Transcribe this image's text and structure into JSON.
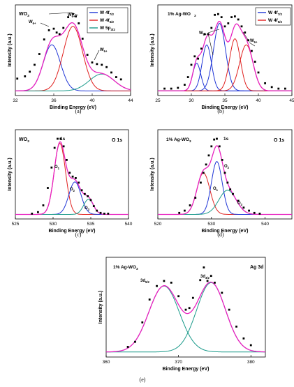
{
  "chart_data": [
    {
      "panel": "(a)",
      "type": "line",
      "sample": "WO3",
      "xlabel": "Binding Energy (eV)",
      "ylabel": "Intensity (a.u.)",
      "xlim": [
        32,
        44
      ],
      "xticks": [
        32,
        36,
        40,
        44
      ],
      "legend": [
        "W 4f7/2",
        "W 4f5/2",
        "W 5p3/2"
      ],
      "legend_colors": [
        "#1f35d6",
        "#e0201e",
        "#1a9a8a"
      ],
      "peak_labels": [
        "W6+",
        "W6+"
      ],
      "experimental": {
        "x": [
          32.2,
          33,
          33.5,
          34,
          34.5,
          35,
          35.5,
          36,
          36.3,
          36.6,
          37,
          37.5,
          38,
          38.3,
          38.6,
          39,
          39.5,
          40,
          40.5,
          41,
          41.5,
          42,
          42.5,
          43
        ],
        "y": [
          0.16,
          0.19,
          0.25,
          0.34,
          0.48,
          0.67,
          0.79,
          0.81,
          0.76,
          0.74,
          0.82,
          0.96,
          1.0,
          0.97,
          0.88,
          0.68,
          0.47,
          0.37,
          0.35,
          0.34,
          0.31,
          0.24,
          0.18,
          0.15
        ]
      },
      "series": [
        {
          "name": "W 4f7/2",
          "center": 35.8,
          "height": 0.6,
          "sigma": 0.9
        },
        {
          "name": "W 4f5/2",
          "center": 38.0,
          "height": 0.84,
          "sigma": 1.0
        },
        {
          "name": "W 5p3/2",
          "center": 41.0,
          "height": 0.22,
          "sigma": 1.3
        }
      ]
    },
    {
      "panel": "(b)",
      "type": "line",
      "sample": "1% Ag-WO3",
      "xlabel": "Binding Energy (eV)",
      "ylabel": "Intensity (a.u.)",
      "xlim": [
        25,
        45
      ],
      "xticks": [
        25,
        30,
        35,
        40,
        45
      ],
      "legend": [
        "W 4f7/2",
        "W 4f5/2"
      ],
      "legend_colors": [
        "#1f35d6",
        "#e0201e"
      ],
      "peak_labels": [
        "W5+",
        "W6+"
      ],
      "experimental": {
        "x": [
          26,
          27,
          28,
          29,
          29.5,
          30,
          30.5,
          31,
          31.5,
          32,
          32.5,
          33,
          33.5,
          34,
          34.5,
          35,
          35.5,
          36,
          36.5,
          37,
          37.5,
          38,
          38.5,
          39,
          39.5,
          40,
          41,
          42,
          43,
          44
        ],
        "y": [
          0.03,
          0.03,
          0.04,
          0.08,
          0.18,
          0.34,
          0.45,
          0.42,
          0.55,
          0.74,
          0.74,
          0.82,
          0.99,
          1.0,
          0.96,
          0.84,
          0.88,
          0.96,
          0.97,
          0.93,
          0.84,
          0.76,
          0.66,
          0.52,
          0.38,
          0.24,
          0.1,
          0.05,
          0.03,
          0.03
        ]
      },
      "series": [
        {
          "name": "W 4f7/2",
          "center": 30.8,
          "height": 0.36,
          "sigma": 0.6
        },
        {
          "name": "W 4f7/2",
          "center": 32.3,
          "height": 0.6,
          "sigma": 0.7
        },
        {
          "name": "W 4f7/2",
          "center": 34.2,
          "height": 0.88,
          "sigma": 0.9
        },
        {
          "name": "W 4f5/2",
          "center": 36.5,
          "height": 0.68,
          "sigma": 0.8
        },
        {
          "name": "W 4f5/2",
          "center": 38.2,
          "height": 0.6,
          "sigma": 1.0
        }
      ]
    },
    {
      "panel": "(c)",
      "type": "line",
      "sample": "WO3",
      "label": "O 1s",
      "peak_top_label": "1s",
      "xlabel": "Binding Energy (eV)",
      "ylabel": "Intensity (a.u.)",
      "xlim": [
        525,
        540
      ],
      "xticks": [
        525,
        530,
        535,
        540
      ],
      "peak_labels": [
        "O1",
        "O2",
        "O3"
      ],
      "experimental": {
        "x": [
          527.2,
          528,
          528.7,
          529.3,
          529.8,
          530.2,
          530.6,
          531,
          531.4,
          531.8,
          532.2,
          532.6,
          533,
          533.4,
          533.8,
          534.2,
          534.6,
          535,
          535.4,
          535.8,
          536.3,
          536.8,
          537.3
        ],
        "y": [
          0.01,
          0.03,
          0.12,
          0.35,
          0.62,
          0.88,
          1.0,
          1.0,
          0.9,
          0.72,
          0.55,
          0.5,
          0.48,
          0.42,
          0.32,
          0.27,
          0.24,
          0.19,
          0.11,
          0.05,
          0.02,
          0.01,
          0.01
        ]
      },
      "series": [
        {
          "name": "O1",
          "center": 530.9,
          "height": 0.94,
          "sigma": 0.75
        },
        {
          "name": "O2",
          "center": 532.9,
          "height": 0.43,
          "sigma": 0.8
        },
        {
          "name": "O3",
          "center": 534.7,
          "height": 0.2,
          "sigma": 0.65
        }
      ]
    },
    {
      "panel": "(d)",
      "type": "line",
      "sample": "1% Ag-WO3",
      "label": "O 1s",
      "peak_top_label": "1s",
      "xlabel": "Binding Energy (eV)",
      "ylabel": "Intensity (a.u.)",
      "xlim": [
        520,
        545
      ],
      "xticks": [
        520,
        530,
        540
      ],
      "peak_labels": [
        "O1",
        "O2",
        "O3"
      ],
      "experimental": {
        "x": [
          524,
          525,
          526,
          527,
          528,
          528.5,
          529,
          529.5,
          530,
          530.5,
          531,
          531.5,
          532,
          532.5,
          533,
          533.5,
          534,
          535,
          536,
          537,
          538,
          539
        ],
        "y": [
          0.02,
          0.05,
          0.12,
          0.22,
          0.42,
          0.55,
          0.66,
          0.78,
          0.9,
          0.99,
          1.0,
          0.9,
          0.72,
          0.55,
          0.42,
          0.33,
          0.27,
          0.18,
          0.09,
          0.05,
          0.02,
          0.01
        ]
      },
      "series": [
        {
          "name": "O1",
          "center": 528.5,
          "height": 0.55,
          "sigma": 1.2
        },
        {
          "name": "O2",
          "center": 531.0,
          "height": 0.7,
          "sigma": 1.0
        },
        {
          "name": "O3",
          "center": 533.0,
          "height": 0.32,
          "sigma": 1.6
        }
      ]
    },
    {
      "panel": "(e)",
      "type": "line",
      "sample": "1% Ag-WO3",
      "label": "Ag 3d",
      "xlabel": "Binding Energy (eV)",
      "ylabel": "Intensity (a.u.)",
      "xlim": [
        360,
        382
      ],
      "xticks": [
        360,
        370,
        380
      ],
      "peak_labels": [
        "3d5/2",
        "3d3/2"
      ],
      "experimental": {
        "x": [
          363,
          364,
          365,
          366,
          367,
          368,
          369,
          370,
          371,
          371.5,
          372,
          373,
          373.5,
          374,
          374.5,
          375,
          376,
          377,
          378,
          379,
          380
        ],
        "y": [
          0.06,
          0.12,
          0.35,
          0.62,
          0.78,
          0.84,
          0.82,
          0.66,
          0.5,
          0.52,
          0.64,
          0.85,
          1.0,
          0.84,
          0.9,
          0.82,
          0.7,
          0.5,
          0.3,
          0.16,
          0.08
        ]
      },
      "series": [
        {
          "name": "3d5/2",
          "center": 368.0,
          "height": 0.78,
          "sigma": 2.1
        },
        {
          "name": "3d3/2",
          "center": 374.5,
          "height": 0.82,
          "sigma": 2.0
        }
      ]
    }
  ]
}
